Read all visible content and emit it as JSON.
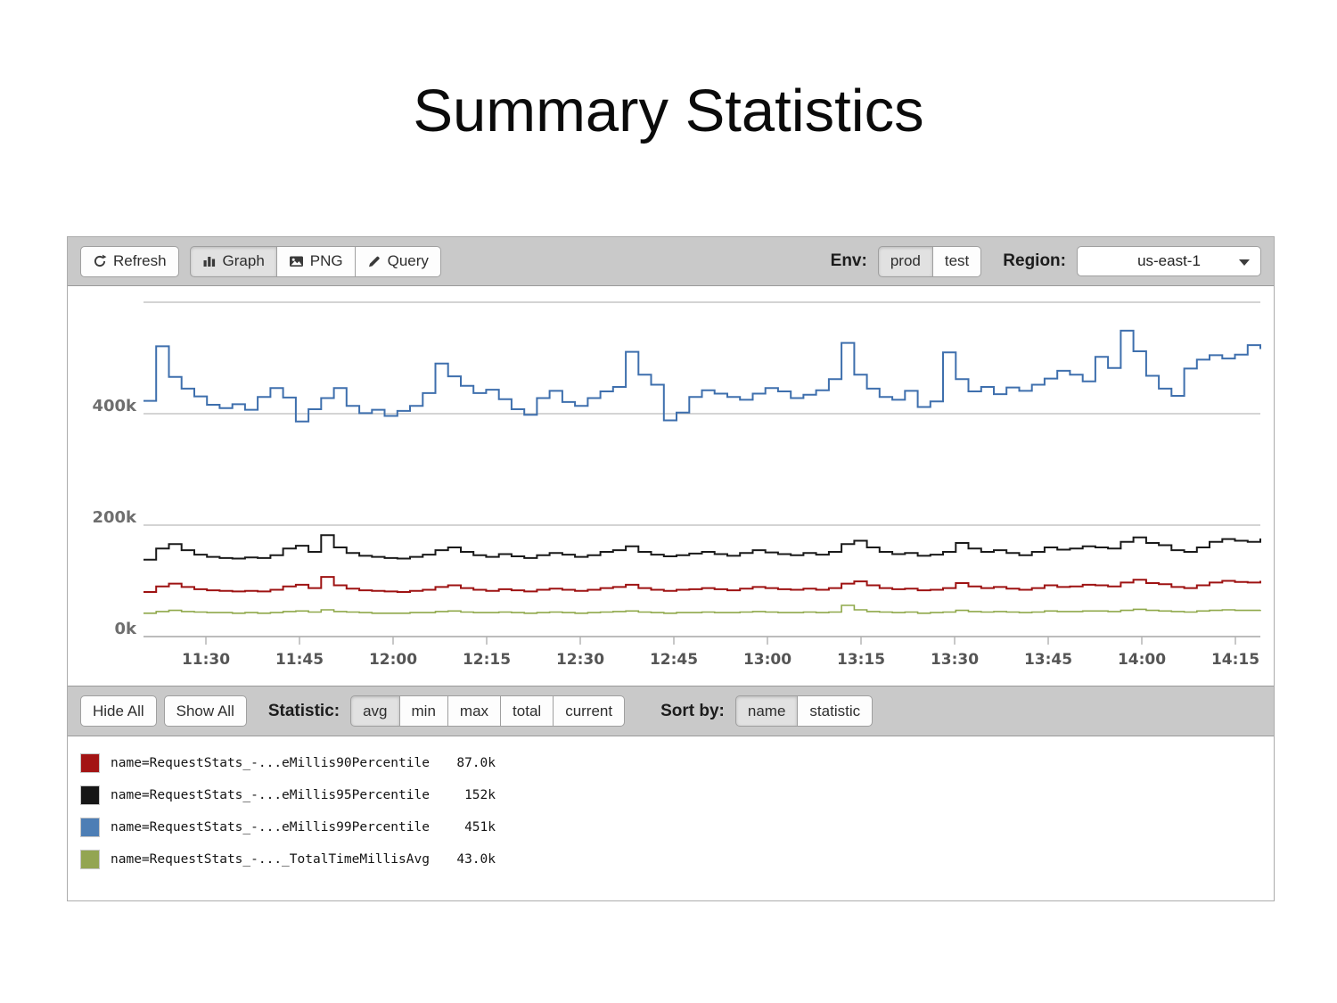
{
  "page": {
    "title": "Summary Statistics"
  },
  "toolbar": {
    "refresh_label": "Refresh",
    "view_buttons": [
      {
        "label": "Graph",
        "icon": "bar-chart-icon",
        "selected": true
      },
      {
        "label": "PNG",
        "icon": "image-icon",
        "selected": false
      },
      {
        "label": "Query",
        "icon": "pencil-icon",
        "selected": false
      }
    ],
    "env_label": "Env:",
    "env_options": [
      {
        "label": "prod",
        "selected": true
      },
      {
        "label": "test",
        "selected": false
      }
    ],
    "region_label": "Region:",
    "region_value": "us-east-1"
  },
  "legend_toolbar": {
    "hide_all_label": "Hide All",
    "show_all_label": "Show All",
    "statistic_label": "Statistic:",
    "statistic_options": [
      {
        "label": "avg",
        "selected": true
      },
      {
        "label": "min",
        "selected": false
      },
      {
        "label": "max",
        "selected": false
      },
      {
        "label": "total",
        "selected": false
      },
      {
        "label": "current",
        "selected": false
      }
    ],
    "sort_by_label": "Sort by:",
    "sort_options": [
      {
        "label": "name",
        "selected": true
      },
      {
        "label": "statistic",
        "selected": false
      }
    ]
  },
  "legend": {
    "rows": [
      {
        "color": "#a31414",
        "name": "name=RequestStats_-...eMillis90Percentile",
        "value": "87.0k"
      },
      {
        "color": "#161616",
        "name": "name=RequestStats_-...eMillis95Percentile",
        "value": "152k"
      },
      {
        "color": "#4d7eb5",
        "name": "name=RequestStats_-...eMillis99Percentile",
        "value": "451k"
      },
      {
        "color": "#93a552",
        "name": "name=RequestStats_-..._TotalTimeMillisAvg",
        "value": "43.0k"
      }
    ]
  },
  "chart_data": {
    "type": "line",
    "style": "step-after",
    "title": "",
    "xlabel": "",
    "ylabel": "",
    "x_tick_labels": [
      "11:30",
      "11:45",
      "12:00",
      "12:15",
      "12:30",
      "12:45",
      "13:00",
      "13:15",
      "13:30",
      "13:45",
      "14:00",
      "14:15"
    ],
    "y_ticks": [
      {
        "k": 0,
        "label": "0k"
      },
      {
        "k": 200,
        "label": "200k"
      },
      {
        "k": 400,
        "label": "400k"
      }
    ],
    "gridlines_k": [
      200,
      400,
      600
    ],
    "ylim_k": [
      0,
      620
    ],
    "legend_position": "bottom",
    "series": [
      {
        "name": "name=RequestStats_-...eMillis99Percentile",
        "stat": "avg",
        "avg_k": 451,
        "color": "#3e6fad",
        "values_k": [
          423,
          521,
          466,
          445,
          431,
          416,
          410,
          417,
          407,
          430,
          446,
          429,
          386,
          408,
          428,
          446,
          414,
          401,
          407,
          396,
          405,
          414,
          437,
          490,
          467,
          450,
          437,
          443,
          426,
          408,
          398,
          428,
          441,
          421,
          414,
          428,
          440,
          448,
          511,
          470,
          452,
          388,
          402,
          430,
          442,
          436,
          430,
          425,
          436,
          446,
          440,
          428,
          434,
          442,
          462,
          527,
          470,
          445,
          430,
          425,
          441,
          412,
          422,
          510,
          462,
          440,
          448,
          435,
          447,
          441,
          452,
          463,
          477,
          470,
          458,
          502,
          482,
          549,
          512,
          468,
          445,
          432,
          481,
          497,
          505,
          499,
          506,
          523,
          516
        ]
      },
      {
        "name": "name=RequestStats_-...eMillis95Percentile",
        "stat": "avg",
        "avg_k": 152,
        "color": "#1a1a1a",
        "values_k": [
          138,
          158,
          166,
          155,
          147,
          143,
          141,
          140,
          142,
          141,
          146,
          158,
          163,
          152,
          182,
          160,
          150,
          145,
          143,
          141,
          140,
          143,
          147,
          155,
          160,
          152,
          146,
          143,
          148,
          144,
          141,
          146,
          150,
          147,
          143,
          146,
          152,
          155,
          162,
          152,
          147,
          144,
          146,
          149,
          152,
          148,
          145,
          150,
          155,
          151,
          148,
          146,
          150,
          147,
          152,
          166,
          172,
          160,
          152,
          148,
          150,
          145,
          147,
          152,
          168,
          158,
          152,
          155,
          150,
          146,
          152,
          160,
          156,
          158,
          162,
          160,
          158,
          170,
          178,
          168,
          164,
          155,
          152,
          160,
          170,
          175,
          172,
          170,
          176
        ]
      },
      {
        "name": "name=RequestStats_-...eMillis90Percentile",
        "stat": "avg",
        "avg_k": 87.0,
        "color": "#9e1212",
        "values_k": [
          80,
          90,
          95,
          89,
          85,
          83,
          82,
          81,
          82,
          81,
          84,
          90,
          93,
          87,
          107,
          92,
          86,
          83,
          82,
          81,
          80,
          82,
          84,
          89,
          92,
          87,
          84,
          82,
          85,
          83,
          81,
          84,
          86,
          84,
          82,
          84,
          87,
          89,
          93,
          87,
          84,
          82,
          84,
          85,
          87,
          85,
          83,
          86,
          89,
          87,
          85,
          84,
          86,
          84,
          87,
          95,
          99,
          92,
          87,
          85,
          86,
          83,
          84,
          87,
          96,
          90,
          87,
          89,
          86,
          84,
          87,
          92,
          89,
          90,
          93,
          92,
          90,
          97,
          102,
          96,
          94,
          89,
          87,
          92,
          97,
          100,
          98,
          97,
          100
        ]
      },
      {
        "name": "name=RequestStats_-..._TotalTimeMillisAvg",
        "stat": "avg",
        "avg_k": 43.0,
        "color": "#8fa84a",
        "values_k": [
          42,
          45,
          47,
          45,
          44,
          43,
          43,
          42,
          43,
          42,
          43,
          45,
          46,
          44,
          48,
          45,
          44,
          43,
          42,
          42,
          42,
          43,
          43,
          45,
          46,
          44,
          43,
          43,
          44,
          43,
          42,
          43,
          44,
          43,
          42,
          43,
          44,
          45,
          46,
          44,
          43,
          42,
          43,
          43,
          44,
          43,
          43,
          44,
          45,
          44,
          43,
          43,
          44,
          43,
          44,
          56,
          48,
          45,
          44,
          43,
          44,
          42,
          43,
          44,
          47,
          45,
          44,
          45,
          44,
          43,
          44,
          46,
          45,
          45,
          46,
          46,
          45,
          47,
          49,
          47,
          46,
          45,
          44,
          46,
          47,
          48,
          47,
          47,
          48
        ]
      }
    ]
  }
}
